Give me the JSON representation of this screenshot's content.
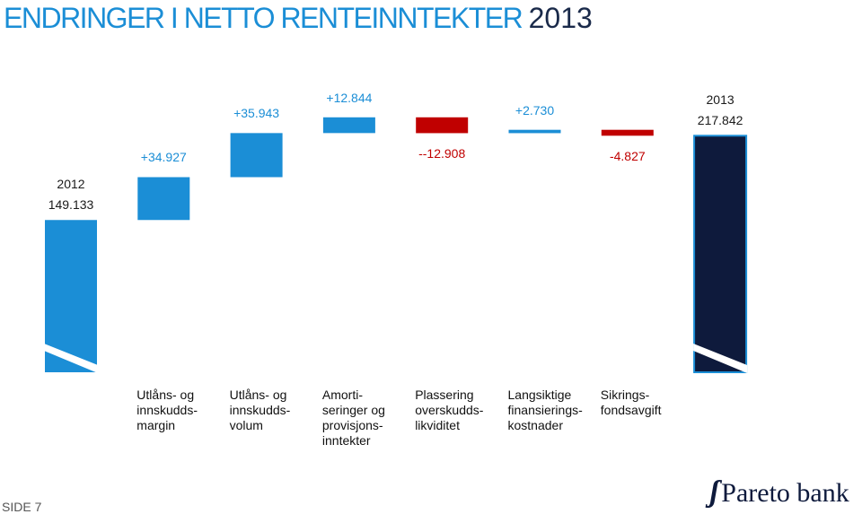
{
  "chart_data": {
    "type": "waterfall",
    "title": "ENDRINGER I NETTO RENTEINNTEKTER",
    "title_year": "2013",
    "categories": [
      "2012",
      "Utlåns- og\ninnskudds-\nmargin",
      "Utlåns- og\ninnskudds-\nvolum",
      "Amorti-\nseringer og\nprovisjons-\ninntekter",
      "Plassering\noverskudds-\nlikviditet",
      "Langsiktige\nfinansierings-\nkostnader",
      "Sikrings-\nfondsavgift",
      "2013"
    ],
    "values": [
      149.133,
      34.927,
      35.943,
      12.844,
      -12.908,
      2.73,
      -4.827,
      217.842
    ],
    "value_labels": [
      "149.133",
      "+34.927",
      "+35.943",
      "+12.844",
      "--12.908",
      "+2.730",
      "-4.827",
      "217.842"
    ],
    "colors": {
      "increase": "#1b8ed6",
      "decrease": "#c00000",
      "start": "#1b8ed6",
      "end": "#0e1a3c"
    },
    "value_label_colors": {
      "increase": "#1b8ed6",
      "decrease": "#c00000",
      "total": "#1a1a1a"
    },
    "ylim": [
      25,
      240
    ],
    "axis_break": true
  },
  "footer": {
    "page": "SIDE 7",
    "logo": "Pareto bank"
  }
}
